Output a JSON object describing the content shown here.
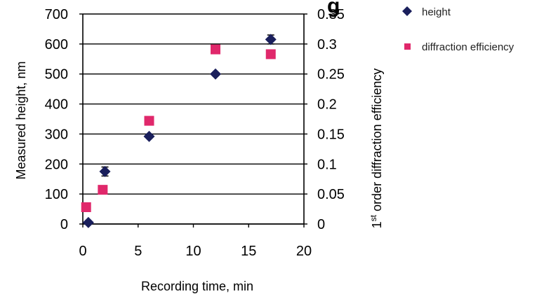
{
  "chart_data": {
    "type": "scatter",
    "title_fragment": "g",
    "xlabel": "Recording time, min",
    "ylabel_left": "Measured height, nm",
    "ylabel_right_prefix": "1",
    "ylabel_right_superscript": "st",
    "ylabel_right_rest": " order diffraction efficiency",
    "xlim": [
      0,
      20
    ],
    "ylim_left": [
      0,
      700
    ],
    "ylim_right": [
      0,
      0.35
    ],
    "x_ticks": [
      "0",
      "5",
      "10",
      "15",
      "20"
    ],
    "y_left_ticks": [
      "0",
      "100",
      "200",
      "300",
      "400",
      "500",
      "600",
      "700"
    ],
    "y_right_ticks": [
      "0",
      "0.05",
      "0.1",
      "0.15",
      "0.2",
      "0.25",
      "0.3",
      "0.35"
    ],
    "grid": "horizontal",
    "legend_placement": "top-right outside",
    "series": [
      {
        "name": "height",
        "axis": "left",
        "marker": "diamond",
        "color": "#1a1f5c",
        "points": [
          {
            "x": 0.5,
            "y": 5,
            "err": 0
          },
          {
            "x": 2,
            "y": 175,
            "err": 15
          },
          {
            "x": 6,
            "y": 292,
            "err": 0
          },
          {
            "x": 12,
            "y": 500,
            "err": 0
          },
          {
            "x": 17,
            "y": 615,
            "err": 15
          }
        ]
      },
      {
        "name": "diffraction efficiency",
        "axis": "right",
        "marker": "square",
        "color": "#e0286b",
        "points": [
          {
            "x": 0.3,
            "y": 0.028
          },
          {
            "x": 1.8,
            "y": 0.057
          },
          {
            "x": 6,
            "y": 0.172
          },
          {
            "x": 12,
            "y": 0.291
          },
          {
            "x": 17,
            "y": 0.283
          }
        ]
      }
    ]
  }
}
